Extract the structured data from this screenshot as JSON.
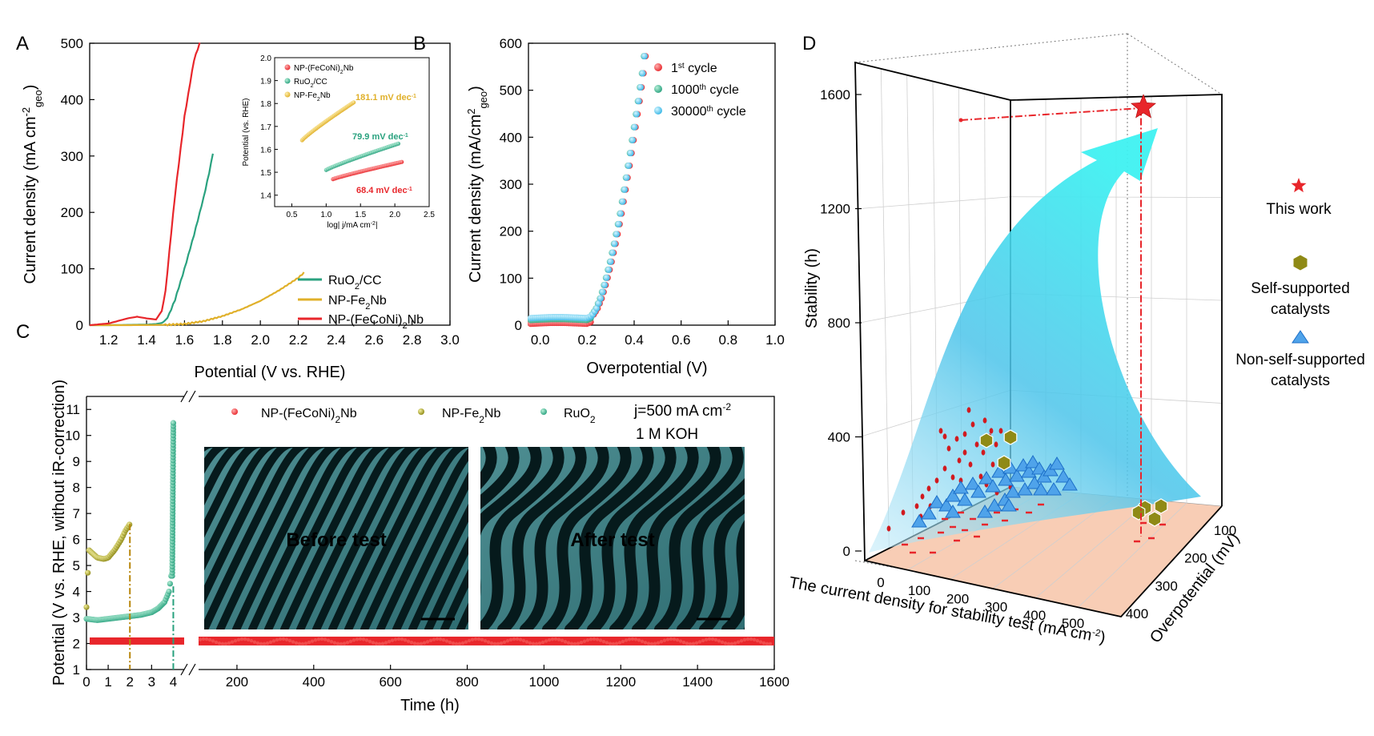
{
  "panels": {
    "a": "A",
    "b": "B",
    "c": "C",
    "d": "D"
  },
  "colors": {
    "red": "#e8262b",
    "green": "#2aa27f",
    "gold": "#e0b02a",
    "cyan": "#36b6e6",
    "olive": "#8f8a16",
    "ruo2": "#27a17d"
  },
  "chart_data": [
    {
      "id": "A",
      "type": "line",
      "xlabel": "Potential (V vs. RHE)",
      "ylabel": "Current density (mA cm-2geo)",
      "xlim": [
        1.1,
        3.0
      ],
      "ylim": [
        0,
        500
      ],
      "xticks": [
        "1.2",
        "1.4",
        "1.6",
        "1.8",
        "2.0",
        "2.2",
        "2.4",
        "2.6",
        "2.8",
        "3.0"
      ],
      "yticks": [
        "0",
        "100",
        "200",
        "300",
        "400",
        "500"
      ],
      "series": [
        {
          "name": "RuO2/CC",
          "color": "#2aa27f",
          "x": [
            1.1,
            1.2,
            1.3,
            1.4,
            1.45,
            1.48,
            1.5,
            1.52,
            1.55,
            1.6,
            1.65,
            1.7,
            1.73,
            1.75
          ],
          "y": [
            0,
            0,
            0.5,
            1,
            2,
            4,
            8,
            20,
            45,
            100,
            160,
            225,
            270,
            305
          ]
        },
        {
          "name": "NP-Fe2Nb",
          "color": "#e0b02a",
          "x": [
            1.1,
            1.3,
            1.5,
            1.6,
            1.7,
            1.8,
            1.9,
            2.0,
            2.1,
            2.2,
            2.23
          ],
          "y": [
            0,
            0,
            0.5,
            2,
            7,
            16,
            28,
            43,
            62,
            84,
            93
          ]
        },
        {
          "name": "NP-(FeCoNi)2Nb",
          "color": "#e8262b",
          "x": [
            1.1,
            1.2,
            1.3,
            1.35,
            1.4,
            1.45,
            1.48,
            1.5,
            1.52,
            1.55,
            1.6,
            1.65,
            1.68
          ],
          "y": [
            0,
            3,
            12,
            15,
            12,
            10,
            25,
            60,
            130,
            230,
            370,
            470,
            500
          ]
        }
      ],
      "legend": [
        "RuO2/CC",
        "NP-Fe2Nb",
        "NP-(FeCoNi)2Nb"
      ],
      "inset": {
        "type": "scatter",
        "xlabel": "log| j/mA cm-2|",
        "ylabel": "Potential (vs. RHE)",
        "xlim": [
          0.25,
          2.5
        ],
        "ylim": [
          1.35,
          2.0
        ],
        "xticks": [
          "0.5",
          "1.0",
          "1.5",
          "2.0",
          "2.5"
        ],
        "yticks": [
          "1.4",
          "1.5",
          "1.6",
          "1.7",
          "1.8",
          "1.9",
          "2.0"
        ],
        "legend": [
          "NP-(FeCoNi)2Nb",
          "RuO2/CC",
          "NP-Fe2Nb"
        ],
        "annotations": [
          "181.1 mV dec-1",
          "79.9 mV dec-1",
          "68.4 mV dec-1"
        ],
        "series": [
          {
            "name": "NP-(FeCoNi)2Nb",
            "color": "#e8262b",
            "x": [
              1.1,
              2.1
            ],
            "y": [
              1.47,
              1.545
            ]
          },
          {
            "name": "RuO2/CC",
            "color": "#2aa27f",
            "x": [
              1.0,
              2.05
            ],
            "y": [
              1.51,
              1.625
            ]
          },
          {
            "name": "NP-Fe2Nb",
            "color": "#e0b02a",
            "x": [
              0.65,
              1.4
            ],
            "y": [
              1.64,
              1.805
            ]
          }
        ]
      }
    },
    {
      "id": "B",
      "type": "scatter",
      "xlabel": "Overpotential (V)",
      "ylabel": "Current density (mA/cm2geo)",
      "xlim": [
        -0.05,
        1.0
      ],
      "ylim": [
        0,
        600
      ],
      "xticks": [
        "0.0",
        "0.2",
        "0.4",
        "0.6",
        "0.8",
        "1.0"
      ],
      "yticks": [
        "0",
        "100",
        "200",
        "300",
        "400",
        "500",
        "600"
      ],
      "legend": [
        "1st cycle",
        "1000th cycle",
        "30000th cycle"
      ],
      "series": [
        {
          "name": "1st cycle",
          "color": "#e8262b"
        },
        {
          "name": "1000th cycle",
          "color": "#2aa27f"
        },
        {
          "name": "30000th cycle",
          "color": "#36b6e6"
        }
      ],
      "curve": {
        "x": [
          -0.04,
          0.0,
          0.05,
          0.1,
          0.15,
          0.2,
          0.22,
          0.24,
          0.26,
          0.28,
          0.3,
          0.32,
          0.34,
          0.36,
          0.38,
          0.4,
          0.42,
          0.44,
          0.45
        ],
        "y": [
          15,
          16,
          17,
          17,
          16,
          15,
          20,
          35,
          60,
          95,
          135,
          180,
          230,
          290,
          350,
          415,
          480,
          550,
          600
        ]
      }
    },
    {
      "id": "C",
      "type": "scatter",
      "xlabel": "Time (h)",
      "ylabel": "Potential (V vs. RHE, without iR-correction)",
      "ylim": [
        1,
        11.5
      ],
      "yticks": [
        "1",
        "2",
        "3",
        "4",
        "5",
        "6",
        "7",
        "8",
        "9",
        "10",
        "11"
      ],
      "xticks_left": [
        "0",
        "1",
        "2",
        "3",
        "4"
      ],
      "xticks_right": [
        "200",
        "400",
        "600",
        "800",
        "1000",
        "1200",
        "1400",
        "1600"
      ],
      "legend": [
        "NP-(FeCoNi)2Nb",
        "NP-Fe2Nb",
        "RuO2"
      ],
      "annotation": [
        "j=500 mA cm-2",
        "1 M KOH"
      ],
      "images": [
        "Before test",
        "After test"
      ],
      "series": [
        {
          "name": "NP-(FeCoNi)2Nb",
          "color": "#e8262b",
          "value": 2.08,
          "x_range": [
            0,
            1600
          ]
        },
        {
          "name": "NP-Fe2Nb",
          "color": "#8f8a16",
          "x": [
            0,
            0.1,
            0.3,
            0.5,
            0.8,
            1.0,
            1.3,
            1.6,
            1.8,
            2.0
          ],
          "y": [
            3.4,
            5.6,
            5.45,
            5.3,
            5.25,
            5.3,
            5.6,
            6.0,
            6.35,
            6.6
          ]
        },
        {
          "name": "RuO2",
          "color": "#27a17d",
          "x": [
            0,
            0.5,
            1,
            1.5,
            2,
            2.5,
            3,
            3.3,
            3.6,
            3.8,
            3.9,
            3.95,
            4.0
          ],
          "y": [
            2.95,
            2.9,
            2.95,
            3.0,
            3.05,
            3.1,
            3.2,
            3.35,
            3.6,
            4.0,
            4.6,
            6.5,
            10.5
          ]
        }
      ]
    },
    {
      "id": "D",
      "type": "scatter",
      "xlabel": "The current density for stability test (mA cm-2)",
      "ylabel": "Stability (h)",
      "zlabel": "Overpotential (mV)",
      "xticks": [
        "0",
        "100",
        "200",
        "300",
        "400",
        "500"
      ],
      "yticks": [
        "0",
        "400",
        "800",
        "1200",
        "1600"
      ],
      "zticks": [
        "100",
        "200",
        "300",
        "400"
      ],
      "legend": [
        "This work",
        "Self-supported catalysts",
        "Non-self-supported catalysts"
      ],
      "this_work": {
        "current_density": 500,
        "overpotential": 300,
        "stability": 1600
      }
    }
  ]
}
